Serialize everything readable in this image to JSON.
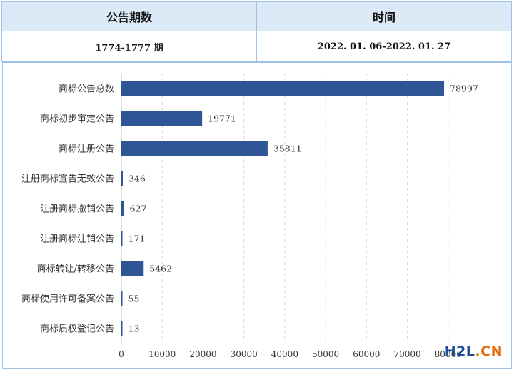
{
  "table": {
    "headers": [
      "公告期数",
      "时间"
    ],
    "row": [
      "1774-1777 期",
      "2022. 01. 06-2022. 01. 27"
    ]
  },
  "chart_data": {
    "type": "bar",
    "orientation": "horizontal",
    "categories": [
      "商标公告总数",
      "商标初步审定公告",
      "商标注册公告",
      "注册商标宣告无效公告",
      "注册商标撤销公告",
      "注册商标注销公告",
      "商标转让/转移公告",
      "商标使用许可备案公告",
      "商标质权登记公告"
    ],
    "values": [
      78997,
      19771,
      35811,
      346,
      627,
      171,
      5462,
      55,
      13
    ],
    "xlim": [
      0,
      90000
    ],
    "xticks": [
      0,
      10000,
      20000,
      30000,
      40000,
      50000,
      60000,
      70000,
      80000
    ],
    "grid": true,
    "bar_color": "#2f5597",
    "title": "",
    "xlabel": "",
    "ylabel": ""
  },
  "watermark": {
    "part_a": "H2L",
    "part_b": ".CN"
  }
}
